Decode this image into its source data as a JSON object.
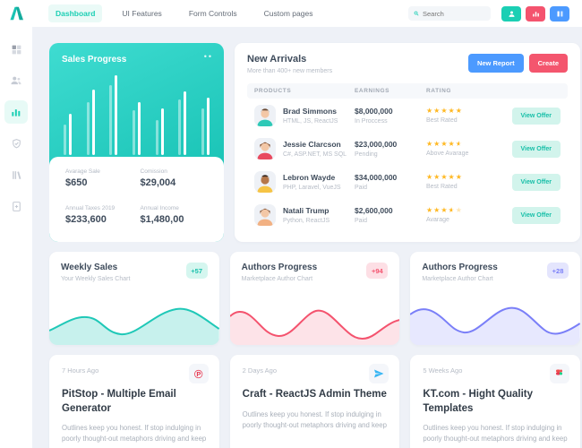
{
  "colors": {
    "accent": "#1bcfb4",
    "danger": "#f4536e",
    "info": "#4c9aff",
    "purple": "#7a7ff8",
    "star": "#ffb822"
  },
  "topbar": {
    "nav_items": [
      {
        "label": "Dashboard",
        "active": true
      },
      {
        "label": "UI Features",
        "active": false
      },
      {
        "label": "Form Controls",
        "active": false
      },
      {
        "label": "Custom pages",
        "active": false
      }
    ],
    "search": {
      "placeholder": "Search"
    },
    "actions": [
      {
        "icon": "user-icon",
        "color": "#1bcfb4"
      },
      {
        "icon": "bar-chart-icon",
        "color": "#f4536e"
      },
      {
        "icon": "columns-icon",
        "color": "#4c9aff"
      }
    ]
  },
  "sidebar": {
    "items": [
      {
        "icon": "grid-icon",
        "active": false
      },
      {
        "icon": "users-icon",
        "active": false
      },
      {
        "icon": "bar-chart-icon",
        "active": true
      },
      {
        "icon": "shield-icon",
        "active": false
      },
      {
        "icon": "library-icon",
        "active": false
      },
      {
        "icon": "file-add-icon",
        "active": false
      }
    ]
  },
  "sales_progress": {
    "title": "Sales Progress",
    "menu": "••",
    "bars": [
      [
        38,
        52
      ],
      [
        66,
        82
      ],
      [
        88,
        100
      ],
      [
        56,
        66
      ],
      [
        44,
        58
      ],
      [
        70,
        80
      ],
      [
        58,
        72
      ]
    ],
    "stats": [
      {
        "label": "Avarage Sale",
        "value": "$650"
      },
      {
        "label": "Comission",
        "value": "$29,004"
      },
      {
        "label": "Annual Taxes 2019",
        "value": "$233,600"
      },
      {
        "label": "Annual Income",
        "value": "$1,480,00"
      }
    ]
  },
  "new_arrivals": {
    "title": "New Arrivals",
    "subtitle": "More than 400+ new members",
    "buttons": [
      {
        "label": "New Report"
      },
      {
        "label": "Create"
      }
    ],
    "table": {
      "headers": [
        "PRODUCTS",
        "EARNINGS",
        "RATING"
      ],
      "rows": [
        {
          "name": "Brad Simmons",
          "skills": "HTML, JS, ReactJS",
          "earnings": "$8,000,000",
          "status": "In Proccess",
          "rating": 5,
          "stars_full": "★★★★★",
          "stars_half": "",
          "stars_empty": "",
          "rating_label": "Best Rated",
          "action": "View Offer",
          "avatar": {
            "skin": "#f3c7a6",
            "hair": "#6d4c35",
            "shirt": "#2ec9b7"
          }
        },
        {
          "name": "Jessie Clarcson",
          "skills": "C#, ASP.NET, MS SQL",
          "earnings": "$23,000,000",
          "status": "Pending",
          "rating": 4.5,
          "stars_full": "★★★★",
          "stars_half": "★",
          "stars_empty": "",
          "rating_label": "Above Avarage",
          "action": "View Offer",
          "avatar": {
            "skin": "#f3c7a6",
            "hair": "#7c4a2b",
            "shirt": "#e8495f"
          }
        },
        {
          "name": "Lebron Wayde",
          "skills": "PHP, Laravel, VueJS",
          "earnings": "$34,000,000",
          "status": "Paid",
          "rating": 5,
          "stars_full": "★★★★★",
          "stars_half": "",
          "stars_empty": "",
          "rating_label": "Best Rated",
          "action": "View Offer",
          "avatar": {
            "skin": "#b5774a",
            "hair": "#32241c",
            "shirt": "#f6c445"
          }
        },
        {
          "name": "Natali Trump",
          "skills": "Python, ReactJS",
          "earnings": "$2,600,000",
          "status": "Paid",
          "rating": 3.5,
          "stars_full": "★★★",
          "stars_half": "★",
          "stars_empty": "★",
          "rating_label": "Avarage",
          "action": "View Offer",
          "avatar": {
            "skin": "#f3c7a6",
            "hair": "#8a5a3b",
            "shirt": "#f2b183"
          }
        }
      ]
    }
  },
  "mini_charts": [
    {
      "title": "Weekly Sales",
      "badge": "+57",
      "subtitle": "Your Weekly Sales Chart",
      "color": "#1bcfb4"
    },
    {
      "title": "Authors Progress",
      "badge": "+94",
      "subtitle": "Marketplace Author Chart",
      "color": "#f4536e"
    },
    {
      "title": "Authors Progress",
      "badge": "+28",
      "subtitle": "Marketplace Author Chart",
      "color": "#7a7ff8"
    }
  ],
  "articles": [
    {
      "time": "7 Hours Ago",
      "icon": "pitstop-p-icon",
      "icon_glyph": "℗",
      "title": "PitStop - Multiple Email Generator",
      "body": "Outlines keep you honest. If stop  indulging in poorly thought-out metaphors driving and keep"
    },
    {
      "time": "2 Days Ago",
      "icon": "paper-plane-icon",
      "title": "Craft - ReactJS Admin Theme",
      "body": "Outlines keep you honest. If stop  indulging in poorly thought-out metaphors driving and keep"
    },
    {
      "time": "5 Weeks Ago",
      "icon": "figma-icon",
      "title": "KT.com - Hight Quality Templates",
      "body": "Outlines keep you honest. If stop  indulging in poorly thought-out metaphors driving and keep"
    }
  ],
  "chart_data": [
    {
      "type": "bar",
      "title": "Sales Progress",
      "series": [
        {
          "name": "secondary",
          "values": [
            38,
            66,
            88,
            56,
            44,
            70,
            58
          ]
        },
        {
          "name": "primary",
          "values": [
            52,
            82,
            100,
            66,
            58,
            80,
            72
          ]
        }
      ],
      "ylabel": "relative height %",
      "grid": false
    },
    {
      "type": "area",
      "title": "Weekly Sales",
      "trend_badge": "+57",
      "color": "#1bcfb4",
      "shape": [
        0.35,
        0.55,
        0.6,
        0.35,
        0.3,
        0.75,
        0.85,
        0.45
      ]
    },
    {
      "type": "area",
      "title": "Authors Progress",
      "trend_badge": "+94",
      "color": "#f4536e",
      "shape": [
        0.65,
        0.7,
        0.25,
        0.2,
        0.8,
        0.85,
        0.3,
        0.15,
        0.55,
        0.6
      ]
    },
    {
      "type": "area",
      "title": "Authors Progress",
      "trend_badge": "+28",
      "color": "#7a7ff8",
      "shape": [
        0.7,
        0.85,
        0.4,
        0.3,
        0.9,
        0.95,
        0.35,
        0.5
      ]
    }
  ]
}
